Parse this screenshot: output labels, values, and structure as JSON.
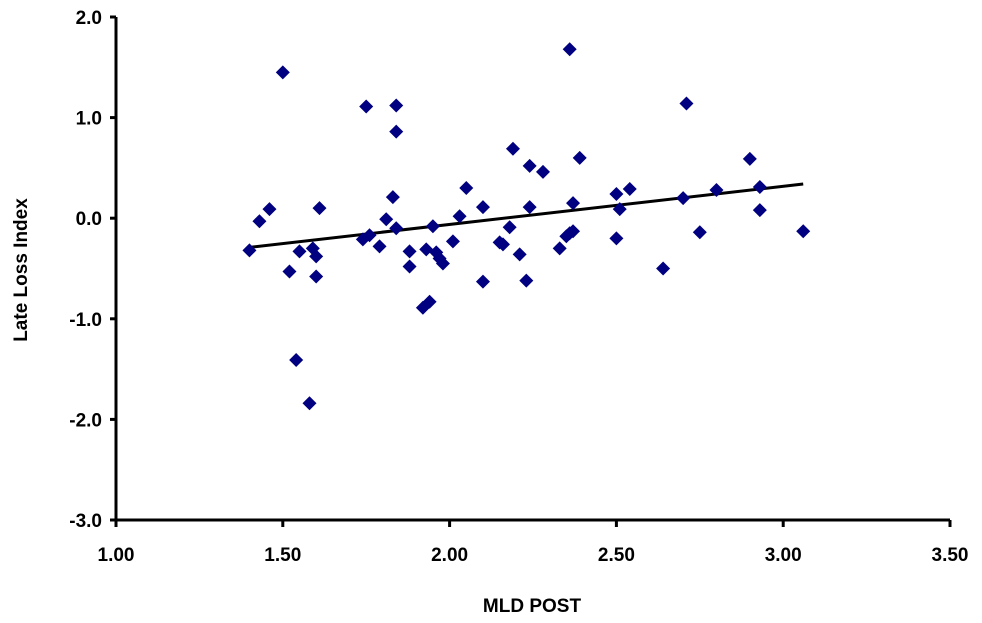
{
  "chart_data": {
    "type": "scatter",
    "title": "",
    "xlabel": "MLD POST",
    "ylabel": "Late Loss Index",
    "xlim": [
      1.0,
      3.5
    ],
    "ylim": [
      -3.0,
      2.0
    ],
    "x_ticks": [
      "1.00",
      "1.50",
      "2.00",
      "2.50",
      "3.00",
      "3.50"
    ],
    "y_ticks": [
      "-3.0",
      "-2.0",
      "-1.0",
      "0.0",
      "1.0",
      "2.0"
    ],
    "x_tick_values": [
      1.0,
      1.5,
      2.0,
      2.5,
      3.0,
      3.5
    ],
    "y_tick_values": [
      -3.0,
      -2.0,
      -1.0,
      0.0,
      1.0,
      2.0
    ],
    "grid": false,
    "legend": "none",
    "marker": "diamond",
    "marker_color": "#000080",
    "line_color": "#000000",
    "trendline": {
      "x": [
        1.4,
        3.06
      ],
      "y": [
        -0.29,
        0.34
      ]
    },
    "points": [
      {
        "x": 1.4,
        "y": -0.32
      },
      {
        "x": 1.43,
        "y": -0.03
      },
      {
        "x": 1.46,
        "y": 0.09
      },
      {
        "x": 1.5,
        "y": 1.45
      },
      {
        "x": 1.52,
        "y": -0.53
      },
      {
        "x": 1.54,
        "y": -1.41
      },
      {
        "x": 1.55,
        "y": -0.33
      },
      {
        "x": 1.58,
        "y": -1.84
      },
      {
        "x": 1.59,
        "y": -0.3
      },
      {
        "x": 1.6,
        "y": -0.58
      },
      {
        "x": 1.6,
        "y": -0.38
      },
      {
        "x": 1.61,
        "y": 0.1
      },
      {
        "x": 1.74,
        "y": -0.21
      },
      {
        "x": 1.75,
        "y": 1.11
      },
      {
        "x": 1.76,
        "y": -0.17
      },
      {
        "x": 1.79,
        "y": -0.28
      },
      {
        "x": 1.81,
        "y": -0.01
      },
      {
        "x": 1.83,
        "y": 0.21
      },
      {
        "x": 1.84,
        "y": 1.12
      },
      {
        "x": 1.84,
        "y": -0.1
      },
      {
        "x": 1.84,
        "y": 0.86
      },
      {
        "x": 1.88,
        "y": -0.33
      },
      {
        "x": 1.88,
        "y": -0.48
      },
      {
        "x": 1.92,
        "y": -0.89
      },
      {
        "x": 1.93,
        "y": -0.31
      },
      {
        "x": 1.94,
        "y": -0.83
      },
      {
        "x": 1.95,
        "y": -0.08
      },
      {
        "x": 1.96,
        "y": -0.34
      },
      {
        "x": 1.97,
        "y": -0.4
      },
      {
        "x": 1.98,
        "y": -0.45
      },
      {
        "x": 2.01,
        "y": -0.23
      },
      {
        "x": 2.03,
        "y": 0.02
      },
      {
        "x": 2.05,
        "y": 0.3
      },
      {
        "x": 2.1,
        "y": 0.11
      },
      {
        "x": 2.1,
        "y": -0.63
      },
      {
        "x": 2.15,
        "y": -0.24
      },
      {
        "x": 2.16,
        "y": -0.26
      },
      {
        "x": 2.18,
        "y": -0.09
      },
      {
        "x": 2.19,
        "y": 0.69
      },
      {
        "x": 2.21,
        "y": -0.36
      },
      {
        "x": 2.23,
        "y": -0.62
      },
      {
        "x": 2.24,
        "y": 0.52
      },
      {
        "x": 2.24,
        "y": 0.11
      },
      {
        "x": 2.28,
        "y": 0.46
      },
      {
        "x": 2.33,
        "y": -0.3
      },
      {
        "x": 2.35,
        "y": -0.18
      },
      {
        "x": 2.36,
        "y": -0.15
      },
      {
        "x": 2.36,
        "y": 1.68
      },
      {
        "x": 2.37,
        "y": -0.13
      },
      {
        "x": 2.37,
        "y": 0.15
      },
      {
        "x": 2.39,
        "y": 0.6
      },
      {
        "x": 2.5,
        "y": 0.24
      },
      {
        "x": 2.5,
        "y": -0.2
      },
      {
        "x": 2.51,
        "y": 0.09
      },
      {
        "x": 2.54,
        "y": 0.29
      },
      {
        "x": 2.64,
        "y": -0.5
      },
      {
        "x": 2.7,
        "y": 0.2
      },
      {
        "x": 2.71,
        "y": 1.14
      },
      {
        "x": 2.75,
        "y": -0.14
      },
      {
        "x": 2.8,
        "y": 0.28
      },
      {
        "x": 2.9,
        "y": 0.59
      },
      {
        "x": 2.93,
        "y": 0.31
      },
      {
        "x": 2.93,
        "y": 0.08
      },
      {
        "x": 3.06,
        "y": -0.13
      }
    ]
  }
}
